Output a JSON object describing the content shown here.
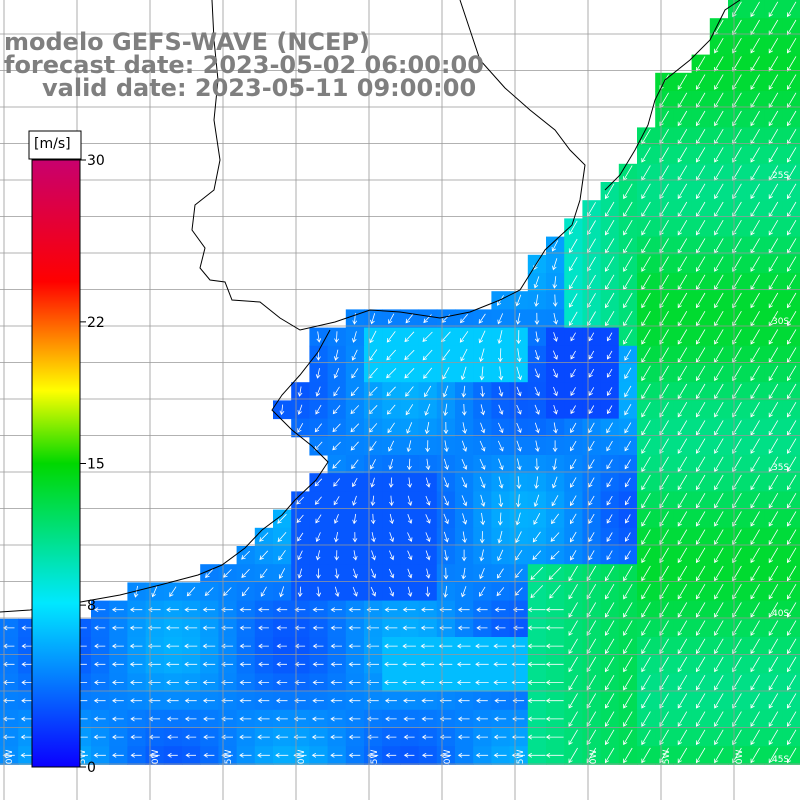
{
  "title": {
    "line1": "modelo GEFS-WAVE (NCEP)",
    "line2": "forecast date: 2023-05-02 06:00:00",
    "line3": "valid date: 2023-05-11 09:00:00"
  },
  "colorbar": {
    "unit": "[m/s]",
    "ticks": [
      {
        "value": 30,
        "label": "30"
      },
      {
        "value": 22,
        "label": "22"
      },
      {
        "value": 15,
        "label": "15"
      },
      {
        "value": 8,
        "label": "8"
      },
      {
        "value": 0,
        "label": "0"
      }
    ],
    "stops": [
      "#0a00ff",
      "#00e8ff",
      "#00d800",
      "#ffff00",
      "#ff0000",
      "#c8006e"
    ],
    "min": 0,
    "max": 30
  },
  "map": {
    "land_color": "#ffffff",
    "coast_color": "#000000",
    "grid_color": "#999999",
    "arrow_color": "#ffffff",
    "lon_labels": [
      "70W",
      "65W",
      "60W",
      "55W",
      "50W",
      "45W",
      "40W",
      "35W",
      "30W",
      "25W",
      "20W"
    ],
    "lat_labels": [
      "25S",
      "30S",
      "35S",
      "40S",
      "45S"
    ]
  }
}
